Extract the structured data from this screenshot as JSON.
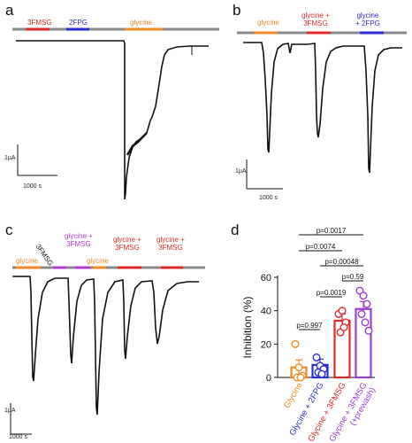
{
  "colors": {
    "red": "#e02a2a",
    "blue": "#2b2bd4",
    "orange": "#f08a24",
    "purple": "#9b3fd0",
    "gray": "#7d7d7d"
  },
  "panel_a": {
    "letter": "a",
    "labels": {
      "l1": "3FMSG",
      "l2": "2FPG",
      "l3": "glycine"
    },
    "scale_current": "1µA",
    "scale_time": "1000 s"
  },
  "panel_b": {
    "letter": "b",
    "labels": {
      "l1": "glycine",
      "l2a": "glycine +",
      "l2b": "3FMSG",
      "l3a": "glycine",
      "l3b": "+ 2FPG"
    },
    "scale_current": "1µA",
    "scale_time": "1000 s"
  },
  "panel_c": {
    "letter": "c",
    "labels": {
      "l1": "glycine",
      "l2": "3FMSG",
      "l3a": "glycine +",
      "l3b": "3FMSG",
      "l4": "glycine",
      "l5a": "glycine +",
      "l5b": "3FMSG",
      "l6a": "glycine +",
      "l6b": "3FMSG"
    },
    "scale_current": "1µA",
    "scale_time": "1000 s"
  },
  "panel_d": {
    "letter": "d",
    "pvalues": [
      "p=0.0017",
      "p=0.0074",
      "p=0.00048",
      "p=0.59",
      "p=0.0019",
      "p=0.997"
    ]
  },
  "chart_data": {
    "type": "bar",
    "ylabel": "Inhibition (%)",
    "ylim": [
      0,
      60
    ],
    "yticks": [
      0,
      20,
      40,
      60
    ],
    "categories": [
      "Glycine",
      "Glycine + 2FPG",
      "Glycine + 3FMSG",
      "Glycine + 3FMSG (+prewash)"
    ],
    "values": [
      6,
      7.5,
      34,
      41
    ],
    "errors": [
      4.5,
      3.5,
      4,
      4.5
    ],
    "colors": [
      "#f08a24",
      "#2b2bd4",
      "#e02a2a",
      "#9b3fd0"
    ],
    "points": [
      [
        20,
        6,
        1,
        0,
        0
      ],
      [
        12,
        7,
        5,
        3,
        2
      ],
      [
        38,
        40,
        33,
        27,
        30
      ],
      [
        52,
        49,
        44,
        38,
        33,
        28
      ]
    ]
  }
}
